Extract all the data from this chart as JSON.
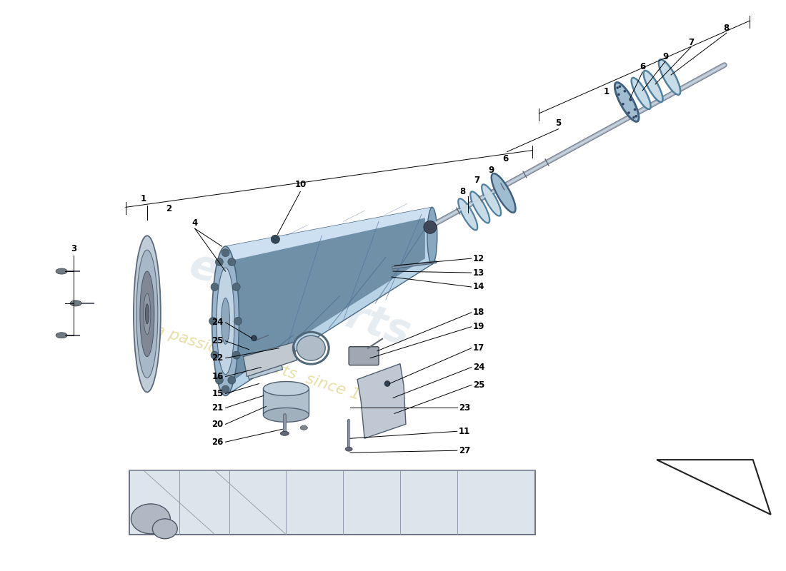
{
  "bg": "#ffffff",
  "lc": "#000000",
  "lw": 0.7,
  "fs": 8.5,
  "housing_color": "#b8d4e8",
  "housing_dark": "#7a9ab8",
  "housing_light": "#d8eaf8",
  "housing_edge": "#4a6880",
  "disc_color": "#c0ccd8",
  "disc_dark": "#8090a0",
  "grey_mid": "#a0b0c0",
  "grey_light": "#d0dce8",
  "yellow_wm": "#d4c060",
  "blue_wm": "#b0c8d8"
}
